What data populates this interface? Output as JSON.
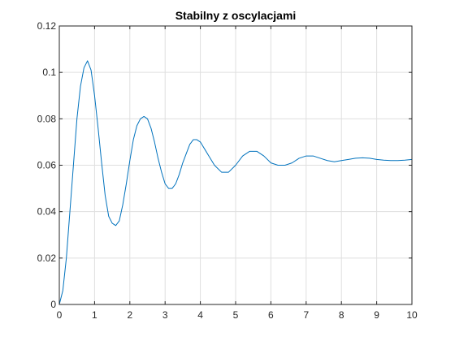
{
  "chart_data": {
    "type": "line",
    "title": "Stabilny z oscylacjami",
    "xlabel": "",
    "ylabel": "",
    "xlim": [
      0,
      10
    ],
    "ylim": [
      0,
      0.12
    ],
    "xticks": [
      0,
      1,
      2,
      3,
      4,
      5,
      6,
      7,
      8,
      9,
      10
    ],
    "xtick_labels": [
      "0",
      "1",
      "2",
      "3",
      "4",
      "5",
      "6",
      "7",
      "8",
      "9",
      "10"
    ],
    "yticks": [
      0,
      0.02,
      0.04,
      0.06,
      0.08,
      0.1,
      0.12
    ],
    "ytick_labels": [
      "0",
      "0.02",
      "0.04",
      "0.06",
      "0.08",
      "0.1",
      "0.12"
    ],
    "grid": true,
    "line_color": "#0072bd",
    "series": [
      {
        "x": [
          0,
          0.1,
          0.2,
          0.3,
          0.4,
          0.5,
          0.6,
          0.7,
          0.8,
          0.9,
          1.0,
          1.1,
          1.2,
          1.3,
          1.4,
          1.5,
          1.6,
          1.7,
          1.8,
          1.9,
          2.0,
          2.1,
          2.2,
          2.3,
          2.4,
          2.5,
          2.6,
          2.7,
          2.8,
          2.9,
          3.0,
          3.1,
          3.2,
          3.3,
          3.4,
          3.5,
          3.6,
          3.7,
          3.8,
          3.9,
          4.0,
          4.2,
          4.4,
          4.6,
          4.8,
          5.0,
          5.2,
          5.4,
          5.6,
          5.8,
          6.0,
          6.2,
          6.4,
          6.6,
          6.8,
          7.0,
          7.2,
          7.4,
          7.6,
          7.8,
          8.0,
          8.2,
          8.4,
          8.6,
          8.8,
          9.0,
          9.2,
          9.4,
          9.6,
          9.8,
          10.0
        ],
        "y": [
          0,
          0.006,
          0.02,
          0.04,
          0.06,
          0.08,
          0.094,
          0.102,
          0.105,
          0.101,
          0.09,
          0.076,
          0.061,
          0.047,
          0.038,
          0.035,
          0.034,
          0.036,
          0.043,
          0.052,
          0.062,
          0.071,
          0.077,
          0.08,
          0.081,
          0.08,
          0.076,
          0.07,
          0.063,
          0.057,
          0.052,
          0.05,
          0.05,
          0.052,
          0.056,
          0.061,
          0.065,
          0.069,
          0.071,
          0.071,
          0.07,
          0.065,
          0.06,
          0.057,
          0.057,
          0.06,
          0.064,
          0.066,
          0.066,
          0.064,
          0.061,
          0.06,
          0.06,
          0.061,
          0.063,
          0.064,
          0.064,
          0.063,
          0.062,
          0.0615,
          0.062,
          0.0625,
          0.063,
          0.0632,
          0.063,
          0.0625,
          0.0622,
          0.062,
          0.062,
          0.0622,
          0.0625
        ]
      }
    ]
  }
}
